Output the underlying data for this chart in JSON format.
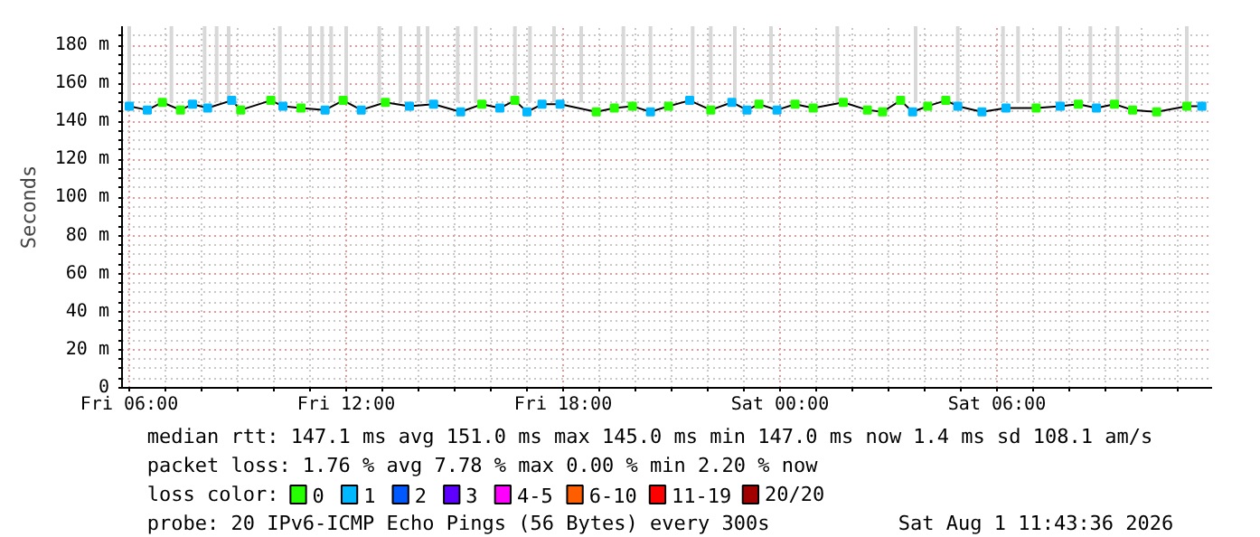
{
  "chart_data": {
    "type": "line",
    "ylabel": "Seconds",
    "xlim": [
      "2026-07-31T05:48",
      "2026-08-01T11:57"
    ],
    "ylim": [
      0,
      190
    ],
    "xticks": [
      {
        "value": "2026-07-31T06:00",
        "label": "Fri 06:00"
      },
      {
        "value": "2026-07-31T07:00",
        "label": null
      },
      {
        "value": "2026-07-31T08:00",
        "label": null
      },
      {
        "value": "2026-07-31T09:00",
        "label": null
      },
      {
        "value": "2026-07-31T10:00",
        "label": null
      },
      {
        "value": "2026-07-31T11:00",
        "label": null
      },
      {
        "value": "2026-07-31T12:00",
        "label": "Fri 12:00"
      },
      {
        "value": "2026-07-31T13:00",
        "label": null
      },
      {
        "value": "2026-07-31T14:00",
        "label": null
      },
      {
        "value": "2026-07-31T15:00",
        "label": null
      },
      {
        "value": "2026-07-31T16:00",
        "label": null
      },
      {
        "value": "2026-07-31T17:00",
        "label": null
      },
      {
        "value": "2026-07-31T18:00",
        "label": "Fri 18:00"
      },
      {
        "value": "2026-07-31T19:00",
        "label": null
      },
      {
        "value": "2026-07-31T20:00",
        "label": null
      },
      {
        "value": "2026-07-31T21:00",
        "label": null
      },
      {
        "value": "2026-07-31T22:00",
        "label": null
      },
      {
        "value": "2026-07-31T23:00",
        "label": null
      },
      {
        "value": "2026-08-01T00:00",
        "label": "Sat 00:00"
      },
      {
        "value": "2026-08-01T01:00",
        "label": null
      },
      {
        "value": "2026-08-01T02:00",
        "label": null
      },
      {
        "value": "2026-08-01T03:00",
        "label": null
      },
      {
        "value": "2026-08-01T04:00",
        "label": null
      },
      {
        "value": "2026-08-01T05:00",
        "label": null
      },
      {
        "value": "2026-08-01T06:00",
        "label": "Sat 06:00"
      },
      {
        "value": "2026-08-01T07:00",
        "label": null
      },
      {
        "value": "2026-08-01T08:00",
        "label": null
      },
      {
        "value": "2026-08-01T09:00",
        "label": null
      },
      {
        "value": "2026-08-01T10:00",
        "label": null
      },
      {
        "value": "2026-08-01T11:00",
        "label": null
      }
    ],
    "yticks": [
      0,
      {
        "value": 5,
        "label": null
      },
      {
        "value": 10,
        "label": null
      },
      {
        "value": 15,
        "label": null
      },
      {
        "value": 20,
        "label": "20 m"
      },
      {
        "value": 25,
        "label": null
      },
      {
        "value": 30,
        "label": null
      },
      {
        "value": 35,
        "label": null
      },
      {
        "value": 40,
        "label": "40 m"
      },
      {
        "value": 45,
        "label": null
      },
      {
        "value": 50,
        "label": null
      },
      {
        "value": 55,
        "label": null
      },
      {
        "value": 60,
        "label": "60 m"
      },
      {
        "value": 65,
        "label": null
      },
      {
        "value": 70,
        "label": null
      },
      {
        "value": 75,
        "label": null
      },
      {
        "value": 80,
        "label": "80 m"
      },
      {
        "value": 85,
        "label": null
      },
      {
        "value": 90,
        "label": null
      },
      {
        "value": 95,
        "label": null
      },
      {
        "value": 100,
        "label": "100 m"
      },
      {
        "value": 105,
        "label": null
      },
      {
        "value": 110,
        "label": null
      },
      {
        "value": 115,
        "label": null
      },
      {
        "value": 120,
        "label": "120 m"
      },
      {
        "value": 125,
        "label": null
      },
      {
        "value": 130,
        "label": null
      },
      {
        "value": 135,
        "label": null
      },
      {
        "value": 140,
        "label": "140 m"
      },
      {
        "value": 145,
        "label": null
      },
      {
        "value": 150,
        "label": null
      },
      {
        "value": 155,
        "label": null
      },
      {
        "value": 160,
        "label": "160 m"
      },
      {
        "value": 165,
        "label": null
      },
      {
        "value": 170,
        "label": null
      },
      {
        "value": 175,
        "label": null
      },
      {
        "value": 180,
        "label": "180 m"
      },
      {
        "value": 185,
        "label": null
      }
    ],
    "grid": true,
    "legend": "bottom",
    "legend_title": "loss color:",
    "x": [
      "2026-07-31T06:00",
      "2026-07-31T06:30",
      "2026-07-31T06:55",
      "2026-07-31T07:25",
      "2026-07-31T07:45",
      "2026-07-31T08:10",
      "2026-07-31T08:50",
      "2026-07-31T09:05",
      "2026-07-31T09:55",
      "2026-07-31T10:15",
      "2026-07-31T10:45",
      "2026-07-31T11:25",
      "2026-07-31T11:55",
      "2026-07-31T12:25",
      "2026-07-31T13:05",
      "2026-07-31T13:45",
      "2026-07-31T14:25",
      "2026-07-31T15:10",
      "2026-07-31T15:45",
      "2026-07-31T16:15",
      "2026-07-31T16:40",
      "2026-07-31T17:00",
      "2026-07-31T17:25",
      "2026-07-31T17:55",
      "2026-07-31T18:55",
      "2026-07-31T19:25",
      "2026-07-31T19:55",
      "2026-07-31T20:25",
      "2026-07-31T20:55",
      "2026-07-31T21:30",
      "2026-07-31T22:05",
      "2026-07-31T22:40",
      "2026-07-31T23:05",
      "2026-07-31T23:25",
      "2026-07-31T23:55",
      "2026-08-01T00:25",
      "2026-08-01T00:55",
      "2026-08-01T01:45",
      "2026-08-01T02:25",
      "2026-08-01T02:50",
      "2026-08-01T03:20",
      "2026-08-01T03:40",
      "2026-08-01T04:05",
      "2026-08-01T04:35",
      "2026-08-01T04:55",
      "2026-08-01T05:35",
      "2026-08-01T06:15",
      "2026-08-01T07:05",
      "2026-08-01T07:45",
      "2026-08-01T08:15",
      "2026-08-01T08:45",
      "2026-08-01T09:15",
      "2026-08-01T09:45",
      "2026-08-01T10:25",
      "2026-08-01T11:15",
      "2026-08-01T11:40"
    ],
    "series": [
      {
        "type": "bar",
        "color": "#d8d8d8",
        "x": [
          "2026-07-31T06:00",
          "2026-07-31T07:10",
          "2026-07-31T08:05",
          "2026-07-31T08:25",
          "2026-07-31T08:45",
          "2026-07-31T10:10",
          "2026-07-31T11:00",
          "2026-07-31T11:20",
          "2026-07-31T11:35",
          "2026-07-31T12:00",
          "2026-07-31T12:55",
          "2026-07-31T13:30",
          "2026-07-31T14:00",
          "2026-07-31T14:15",
          "2026-07-31T15:05",
          "2026-07-31T15:35",
          "2026-07-31T16:40",
          "2026-07-31T17:05",
          "2026-07-31T17:45",
          "2026-07-31T18:30",
          "2026-07-31T19:40",
          "2026-07-31T20:25",
          "2026-07-31T21:35",
          "2026-07-31T22:05",
          "2026-07-31T22:45",
          "2026-07-31T23:45",
          "2026-08-01T01:35",
          "2026-08-01T03:45",
          "2026-08-01T04:55",
          "2026-08-01T06:10",
          "2026-08-01T06:35",
          "2026-08-01T07:45",
          "2026-08-01T08:35",
          "2026-08-01T09:20",
          "2026-08-01T11:15"
        ],
        "base": [
          150,
          150,
          150,
          150,
          150,
          150,
          150,
          150,
          150,
          150,
          150,
          150,
          150,
          150,
          150,
          150,
          150,
          150,
          150,
          150,
          150,
          150,
          150,
          150,
          150,
          150,
          150,
          150,
          150,
          150,
          150,
          150,
          150,
          150,
          150
        ],
        "values": [
          40,
          40,
          40,
          40,
          40,
          40,
          40,
          40,
          40,
          40,
          40,
          40,
          40,
          40,
          40,
          40,
          40,
          40,
          40,
          40,
          40,
          40,
          40,
          40,
          40,
          40,
          40,
          40,
          40,
          40,
          40,
          40,
          40,
          40,
          40
        ]
      },
      {
        "color": "#000000",
        "values": [
          148,
          146,
          150,
          146,
          149,
          147,
          151,
          146,
          151,
          148,
          147,
          146,
          151,
          146,
          150,
          148,
          149,
          145,
          149,
          147,
          151,
          145,
          149,
          149,
          145,
          147,
          148,
          145,
          148,
          151,
          146,
          150,
          146,
          149,
          146,
          149,
          147,
          150,
          146,
          145,
          151,
          145,
          148,
          151,
          148,
          145,
          147,
          147,
          148,
          149,
          147,
          149,
          146,
          145,
          148,
          148
        ]
      },
      {
        "type": "scatter",
        "name": "0",
        "color": "#26ff00",
        "marker": "square",
        "values": [
          null,
          null,
          150,
          146,
          null,
          null,
          null,
          146,
          151,
          null,
          147,
          null,
          151,
          null,
          150,
          null,
          null,
          null,
          149,
          null,
          151,
          null,
          null,
          null,
          145,
          147,
          148,
          null,
          148,
          null,
          146,
          null,
          null,
          149,
          null,
          149,
          147,
          150,
          146,
          145,
          151,
          null,
          148,
          151,
          null,
          null,
          null,
          147,
          null,
          149,
          null,
          149,
          146,
          145,
          148,
          null
        ]
      },
      {
        "type": "scatter",
        "name": "1",
        "color": "#00b8ff",
        "marker": "square",
        "values": [
          148,
          146,
          null,
          null,
          149,
          147,
          151,
          null,
          null,
          148,
          null,
          146,
          null,
          146,
          null,
          148,
          149,
          145,
          null,
          147,
          null,
          145,
          149,
          149,
          null,
          null,
          null,
          145,
          null,
          151,
          null,
          150,
          146,
          null,
          146,
          null,
          null,
          null,
          null,
          null,
          null,
          145,
          null,
          null,
          148,
          145,
          147,
          null,
          148,
          null,
          147,
          null,
          null,
          null,
          null,
          148
        ]
      },
      {
        "type": "scatter",
        "name": "2",
        "color": "#0059ff",
        "marker": "square",
        "values": [
          null,
          null,
          null,
          null,
          null,
          null,
          null,
          null,
          null,
          null,
          null,
          null,
          null,
          null,
          null,
          null,
          null,
          null,
          null,
          null,
          null,
          null,
          null,
          null,
          null,
          null,
          null,
          null,
          null,
          null,
          null,
          null,
          null,
          null,
          null,
          null,
          null,
          null,
          null,
          null,
          null,
          null,
          null,
          null,
          null,
          null,
          null,
          null,
          null,
          null,
          null,
          null,
          null,
          null,
          null,
          null
        ]
      },
      {
        "type": "scatter",
        "name": "3",
        "color": "#5e00ff",
        "marker": "square",
        "values": [
          null,
          null,
          null,
          null,
          null,
          null,
          null,
          null,
          null,
          null,
          null,
          null,
          null,
          null,
          null,
          null,
          null,
          null,
          null,
          null,
          null,
          null,
          null,
          null,
          null,
          null,
          null,
          null,
          null,
          null,
          null,
          null,
          null,
          null,
          null,
          null,
          null,
          null,
          null,
          null,
          null,
          null,
          null,
          null,
          null,
          null,
          null,
          null,
          null,
          null,
          null,
          null,
          null,
          null,
          null,
          null
        ]
      },
      {
        "type": "scatter",
        "name": "4-5",
        "color": "#ff00ff",
        "marker": "square",
        "values": [
          null,
          null,
          null,
          null,
          null,
          null,
          null,
          null,
          null,
          null,
          null,
          null,
          null,
          null,
          null,
          null,
          null,
          null,
          null,
          null,
          null,
          null,
          null,
          null,
          null,
          null,
          null,
          null,
          null,
          null,
          null,
          null,
          null,
          null,
          null,
          null,
          null,
          null,
          null,
          null,
          null,
          null,
          null,
          null,
          null,
          null,
          null,
          null,
          null,
          null,
          null,
          null,
          null,
          null,
          null,
          null
        ]
      },
      {
        "type": "scatter",
        "name": "6-10",
        "color": "#ff5e00",
        "marker": "square",
        "values": [
          null,
          null,
          null,
          null,
          null,
          null,
          null,
          null,
          null,
          null,
          null,
          null,
          null,
          null,
          null,
          null,
          null,
          null,
          null,
          null,
          null,
          null,
          null,
          null,
          null,
          null,
          null,
          null,
          null,
          null,
          null,
          null,
          null,
          null,
          null,
          null,
          null,
          null,
          null,
          null,
          null,
          null,
          null,
          null,
          null,
          null,
          null,
          null,
          null,
          null,
          null,
          null,
          null,
          null,
          null,
          null
        ]
      },
      {
        "type": "scatter",
        "name": "11-19",
        "color": "#ff0000",
        "marker": "square",
        "values": [
          null,
          null,
          null,
          null,
          null,
          null,
          null,
          null,
          null,
          null,
          null,
          null,
          null,
          null,
          null,
          null,
          null,
          null,
          null,
          null,
          null,
          null,
          null,
          null,
          null,
          null,
          null,
          null,
          null,
          null,
          null,
          null,
          null,
          null,
          null,
          null,
          null,
          null,
          null,
          null,
          null,
          null,
          null,
          null,
          null,
          null,
          null,
          null,
          null,
          null,
          null,
          null,
          null,
          null,
          null,
          null
        ]
      },
      {
        "type": "scatter",
        "name": "20/20",
        "color": "#a10000",
        "marker": "square",
        "values": [
          null,
          null,
          null,
          null,
          null,
          null,
          null,
          null,
          null,
          null,
          null,
          null,
          null,
          null,
          null,
          null,
          null,
          null,
          null,
          null,
          null,
          null,
          null,
          null,
          null,
          null,
          null,
          null,
          null,
          null,
          null,
          null,
          null,
          null,
          null,
          null,
          null,
          null,
          null,
          null,
          null,
          null,
          null,
          null,
          null,
          null,
          null,
          null,
          null,
          null,
          null,
          null,
          null,
          null,
          null,
          null
        ]
      }
    ],
    "annotations": [
      "median rtt:  147.1 ms avg  151.0 ms max  145.0 ms min  147.0 ms now  1.4 ms sd  108.1   am/s",
      "packet loss: 1.76 % avg  7.78 % max  0.00 % min  2.20 % now",
      "probe:       20 IPv6-ICMP Echo Pings (56 Bytes) every 300s",
      "Sat Aug  1 11:43:36 2026"
    ]
  }
}
